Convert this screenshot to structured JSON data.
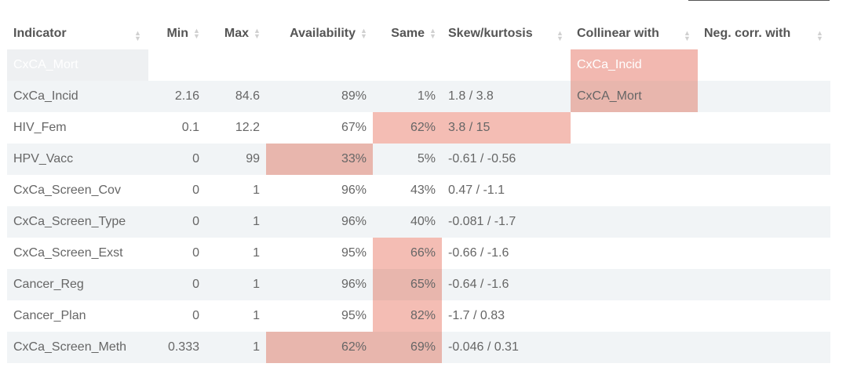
{
  "table": {
    "headers": [
      "Indicator",
      "Min",
      "Max",
      "Availability",
      "Same",
      "Skew/kurtosis",
      "Collinear with",
      "Neg. corr. with"
    ],
    "sort_icon": "sort-arrows-icon",
    "rows": [
      {
        "indicator": "CxCA_Mort",
        "min": "",
        "max": "",
        "availability": "",
        "same": "",
        "skew": "",
        "collinear": "CxCa_Incid",
        "neg": ""
      },
      {
        "indicator": "CxCa_Incid",
        "min": "2.16",
        "max": "84.6",
        "availability": "89%",
        "same": "1%",
        "skew": "1.8 / 3.8",
        "collinear": "CxCA_Mort",
        "neg": ""
      },
      {
        "indicator": "HIV_Fem",
        "min": "0.1",
        "max": "12.2",
        "availability": "67%",
        "same": "62%",
        "skew": "3.8 / 15",
        "collinear": "",
        "neg": ""
      },
      {
        "indicator": "HPV_Vacc",
        "min": "0",
        "max": "99",
        "availability": "33%",
        "same": "5%",
        "skew": "-0.61 / -0.56",
        "collinear": "",
        "neg": ""
      },
      {
        "indicator": "CxCa_Screen_Cov",
        "min": "0",
        "max": "1",
        "availability": "96%",
        "same": "43%",
        "skew": "0.47 / -1.1",
        "collinear": "",
        "neg": ""
      },
      {
        "indicator": "CxCa_Screen_Type",
        "min": "0",
        "max": "1",
        "availability": "96%",
        "same": "40%",
        "skew": "-0.081 / -1.7",
        "collinear": "",
        "neg": ""
      },
      {
        "indicator": "CxCa_Screen_Exst",
        "min": "0",
        "max": "1",
        "availability": "95%",
        "same": "66%",
        "skew": "-0.66 / -1.6",
        "collinear": "",
        "neg": ""
      },
      {
        "indicator": "Cancer_Reg",
        "min": "0",
        "max": "1",
        "availability": "96%",
        "same": "65%",
        "skew": "-0.64 / -1.6",
        "collinear": "",
        "neg": ""
      },
      {
        "indicator": "Cancer_Plan",
        "min": "0",
        "max": "1",
        "availability": "95%",
        "same": "82%",
        "skew": "-1.7 / 0.83",
        "collinear": "",
        "neg": ""
      },
      {
        "indicator": "CxCa_Screen_Meth",
        "min": "0.333",
        "max": "1",
        "availability": "62%",
        "same": "69%",
        "skew": "-0.046 / 0.31",
        "collinear": "",
        "neg": ""
      }
    ]
  },
  "colors": {
    "highlight": "#f4bdb4",
    "highlight_alt": "#e8b6ad",
    "stripe": "#f1f4f6"
  }
}
